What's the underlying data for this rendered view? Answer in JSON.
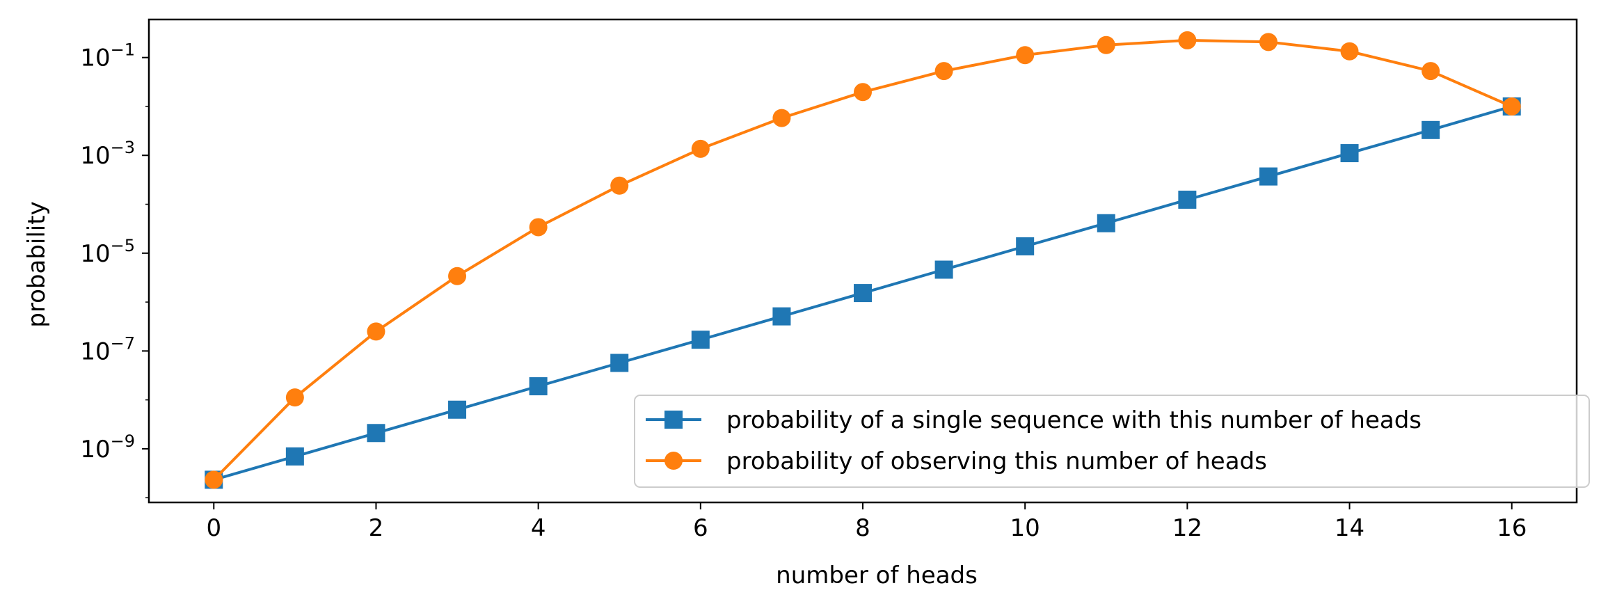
{
  "chart_data": {
    "type": "line",
    "xlabel": "number of heads",
    "ylabel": "probability",
    "y_scale": "log",
    "xlim": [
      -0.8,
      16.8
    ],
    "ylim": [
      8e-11,
      0.6
    ],
    "grid": false,
    "legend_position": "lower-right",
    "x": [
      0,
      1,
      2,
      3,
      4,
      5,
      6,
      7,
      8,
      9,
      10,
      11,
      12,
      13,
      14,
      15,
      16
    ],
    "x_ticks": [
      {
        "value": 0,
        "label": "0"
      },
      {
        "value": 2,
        "label": "2"
      },
      {
        "value": 4,
        "label": "4"
      },
      {
        "value": 6,
        "label": "6"
      },
      {
        "value": 8,
        "label": "8"
      },
      {
        "value": 10,
        "label": "10"
      },
      {
        "value": 12,
        "label": "12"
      },
      {
        "value": 14,
        "label": "14"
      },
      {
        "value": 16,
        "label": "16"
      }
    ],
    "y_ticks": [
      {
        "value": 0.1,
        "base": "10",
        "exp": "−1"
      },
      {
        "value": 0.001,
        "base": "10",
        "exp": "−3"
      },
      {
        "value": 1e-05,
        "base": "10",
        "exp": "−5"
      },
      {
        "value": 1e-07,
        "base": "10",
        "exp": "−7"
      },
      {
        "value": 1e-09,
        "base": "10",
        "exp": "−9"
      }
    ],
    "series": [
      {
        "name": "probability of a single sequence with this number of heads",
        "color": "#1f77b4",
        "marker": "square",
        "values": [
          2.33e-10,
          6.98e-10,
          2.1e-09,
          6.3e-09,
          1.9e-08,
          5.7e-08,
          1.7e-07,
          5.1e-07,
          1.53e-06,
          4.6e-06,
          1.38e-05,
          4.1e-05,
          0.000124,
          0.00037,
          0.00111,
          0.0033,
          0.01
        ]
      },
      {
        "name": "probability of observing this number of heads",
        "color": "#ff7f0e",
        "marker": "circle",
        "values": [
          2.33e-10,
          1.12e-08,
          2.5e-07,
          3.4e-06,
          3.4e-05,
          0.00024,
          0.00136,
          0.0058,
          0.0197,
          0.053,
          0.112,
          0.18,
          0.225,
          0.208,
          0.134,
          0.053,
          0.01
        ]
      }
    ]
  }
}
